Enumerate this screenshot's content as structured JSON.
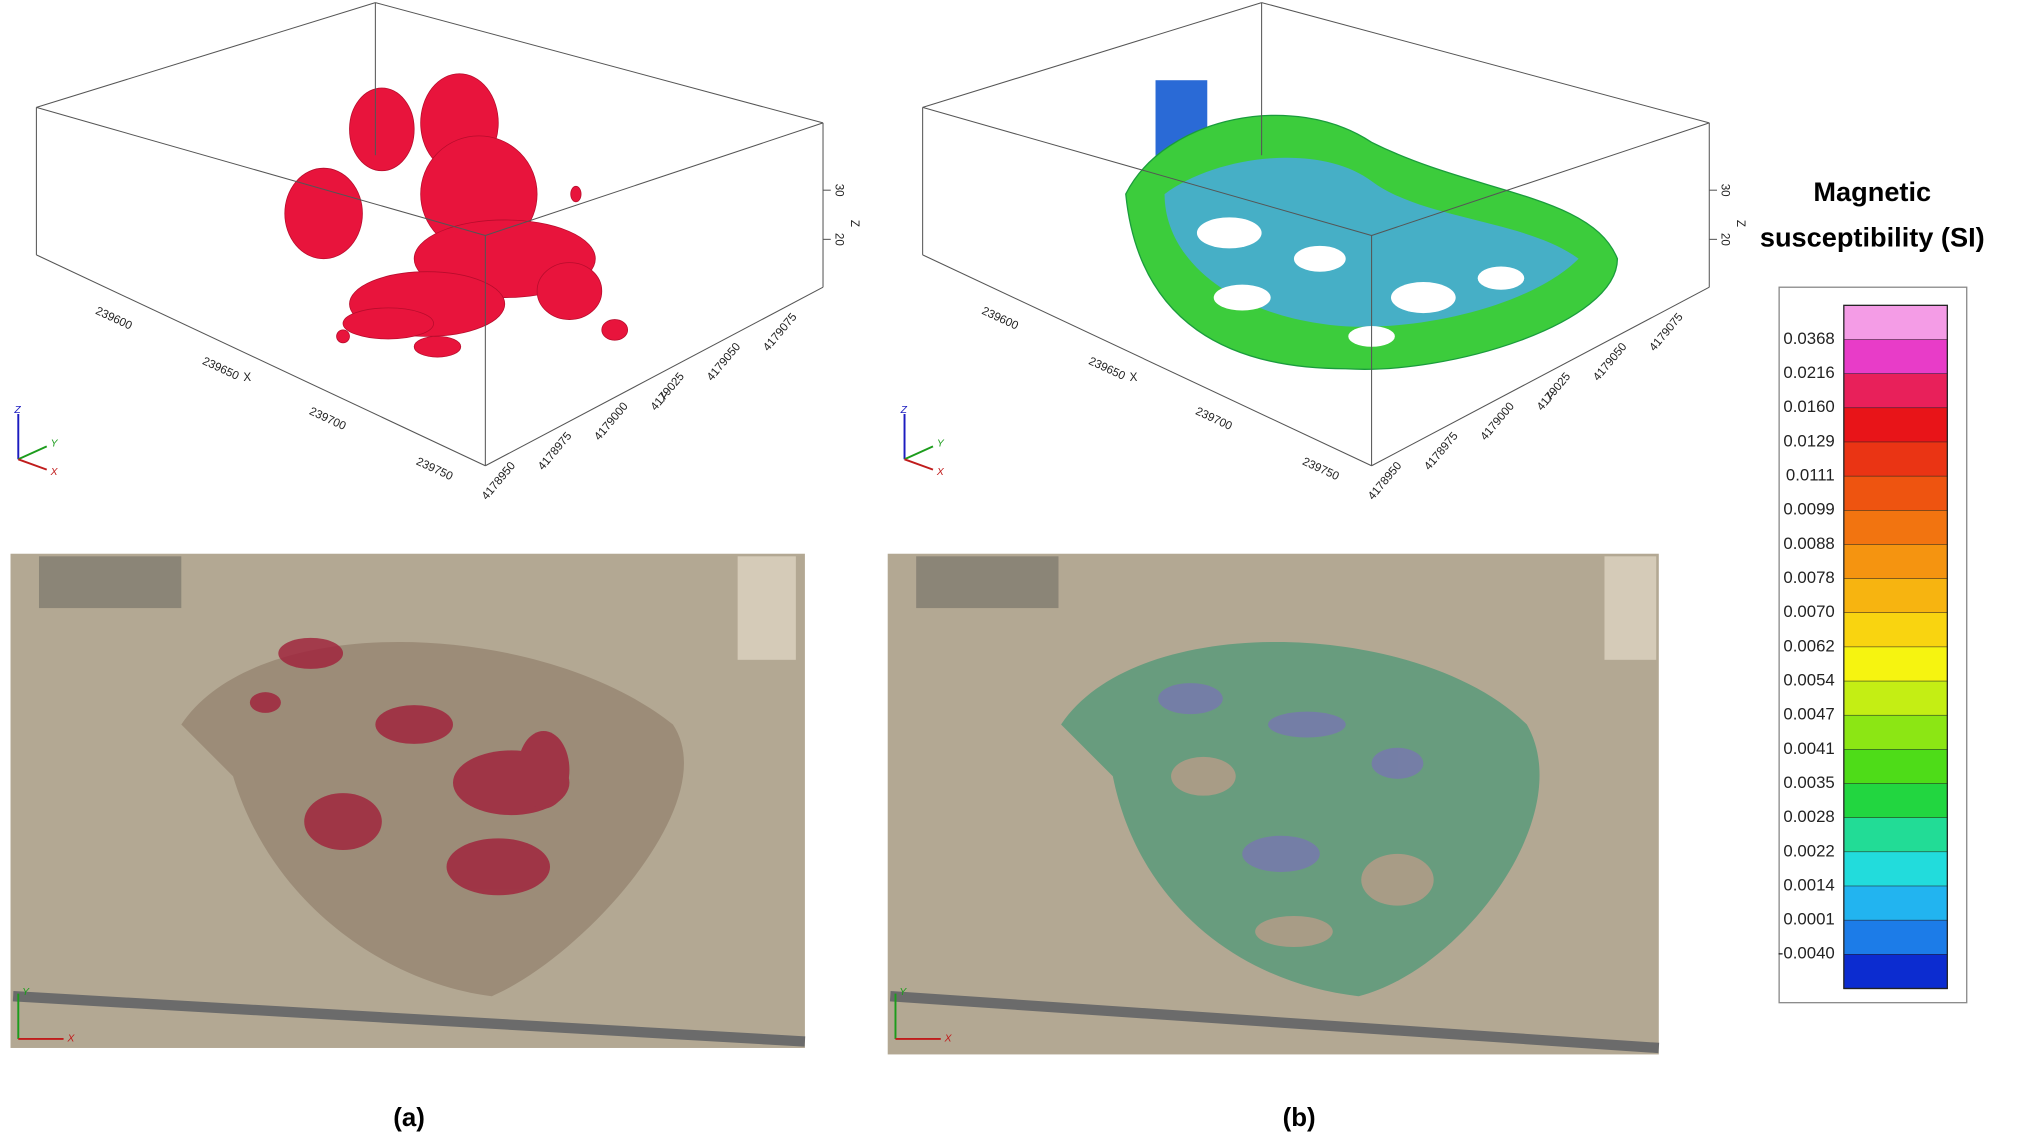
{
  "panels": [
    {
      "caption": "(a)",
      "axes": {
        "x_ticks": [
          239600,
          239650,
          239700,
          239750
        ],
        "x_label": "X",
        "y_ticks": [
          4178950,
          4178975,
          4179000,
          4179025,
          4179050,
          4179075
        ],
        "y_label": "Y",
        "z_ticks": [
          20,
          30
        ],
        "z_label": "Z"
      }
    },
    {
      "caption": "(b)",
      "axes": {
        "x_ticks": [
          239600,
          239650,
          239700,
          239750
        ],
        "x_label": "X",
        "y_ticks": [
          4178950,
          4178975,
          4179000,
          4179025,
          4179050,
          4179075
        ],
        "y_label": "Y",
        "z_ticks": [
          20,
          30
        ],
        "z_label": "Z"
      }
    }
  ],
  "triad": {
    "x": "X",
    "y": "Y",
    "z": "Z"
  },
  "legend": {
    "title_line1": "Magnetic",
    "title_line2": "susceptibility (SI)",
    "labels": [
      "0.0368",
      "0.0216",
      "0.0160",
      "0.0129",
      "0.0111",
      "0.0099",
      "0.0088",
      "0.0078",
      "0.0070",
      "0.0062",
      "0.0054",
      "0.0047",
      "0.0041",
      "0.0035",
      "0.0028",
      "0.0022",
      "0.0014",
      "0.0001",
      "-0.0040"
    ],
    "colors": [
      "#f49ce6",
      "#e83cc8",
      "#e8205a",
      "#e81418",
      "#ea3414",
      "#ee5410",
      "#f27410",
      "#f59410",
      "#f7b410",
      "#f9d410",
      "#f6f410",
      "#c4ee14",
      "#8ce614",
      "#4edc18",
      "#22d640",
      "#22dc96",
      "#22dcdc",
      "#22b4f0",
      "#1c7ce8",
      "#0c2cd0"
    ]
  }
}
